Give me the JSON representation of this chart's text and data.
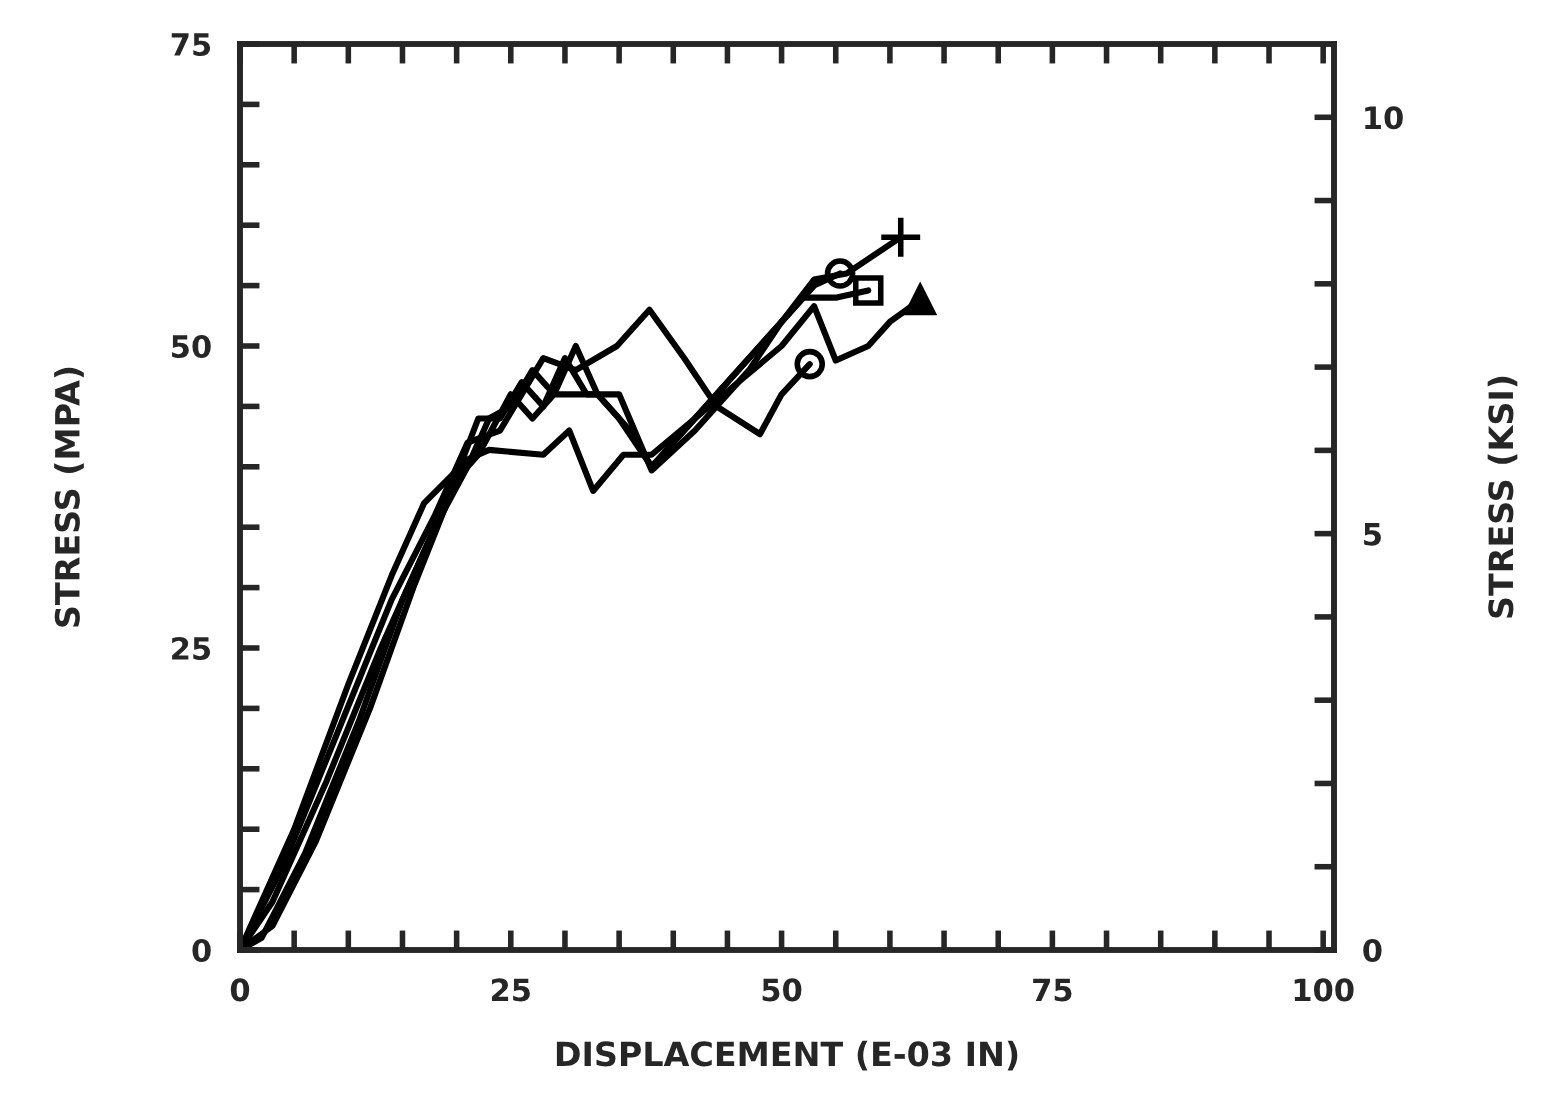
{
  "chart_data": {
    "type": "line",
    "xlabel": "DISPLACEMENT (E-03 IN)",
    "ylabel": "STRESS (MPA)",
    "y2label": "STRESS (KSI)",
    "xlim": [
      0,
      101
    ],
    "ylim": [
      0,
      75
    ],
    "y2lim": [
      0,
      10.88
    ],
    "xticks": [
      0,
      {
        "value": 5,
        "label": null
      },
      {
        "value": 10,
        "label": null
      },
      {
        "value": 15,
        "label": null
      },
      {
        "value": 20,
        "label": null
      },
      25,
      {
        "value": 30,
        "label": null
      },
      {
        "value": 35,
        "label": null
      },
      {
        "value": 40,
        "label": null
      },
      {
        "value": 45,
        "label": null
      },
      50,
      {
        "value": 55,
        "label": null
      },
      {
        "value": 60,
        "label": null
      },
      {
        "value": 65,
        "label": null
      },
      {
        "value": 70,
        "label": null
      },
      75,
      {
        "value": 80,
        "label": null
      },
      {
        "value": 85,
        "label": null
      },
      {
        "value": 90,
        "label": null
      },
      {
        "value": 95,
        "label": null
      },
      100
    ],
    "yticks": [
      0,
      {
        "value": 5,
        "label": null
      },
      {
        "value": 10,
        "label": null
      },
      {
        "value": 15,
        "label": null
      },
      {
        "value": 20,
        "label": null
      },
      25,
      {
        "value": 30,
        "label": null
      },
      {
        "value": 35,
        "label": null
      },
      {
        "value": 40,
        "label": null
      },
      {
        "value": 45,
        "label": null
      },
      50,
      {
        "value": 55,
        "label": null
      },
      {
        "value": 60,
        "label": null
      },
      {
        "value": 65,
        "label": null
      },
      {
        "value": 70,
        "label": null
      },
      75
    ],
    "y2ticks": [
      0,
      {
        "value": 1,
        "label": null
      },
      {
        "value": 2,
        "label": null
      },
      {
        "value": 3,
        "label": null
      },
      {
        "value": 4,
        "label": null
      },
      5,
      {
        "value": 6,
        "label": null
      },
      {
        "value": 7,
        "label": null
      },
      {
        "value": 8,
        "label": null
      },
      {
        "value": 9,
        "label": null
      },
      10
    ],
    "grid": false,
    "line_style": "solid",
    "series": [
      {
        "color": "#000000",
        "x": [
          0,
          3,
          8,
          13,
          18,
          21,
          23,
          25,
          27,
          29,
          31,
          33,
          36,
          38,
          42,
          46,
          50,
          53,
          56,
          61
        ],
        "values": [
          0,
          4,
          14,
          25,
          35,
          40,
          44,
          45,
          48,
          46,
          50,
          46,
          43,
          40,
          44,
          48,
          52,
          55.5,
          56,
          59
        ]
      },
      {
        "color": "#000000",
        "x": [
          0,
          2,
          6,
          11,
          15,
          19,
          22,
          24,
          26,
          28,
          30,
          32,
          35,
          38,
          42,
          47,
          50,
          53,
          55.4
        ],
        "values": [
          0,
          1,
          8,
          19,
          29,
          37,
          44,
          44,
          47,
          45,
          49,
          46,
          46,
          39.7,
          43,
          48,
          52,
          55,
          56
        ]
      },
      {
        "color": "#000000",
        "x": [
          0,
          3,
          7,
          12,
          16,
          20,
          22,
          25,
          27,
          29,
          33,
          35,
          38,
          43,
          48,
          52,
          55,
          58
        ],
        "values": [
          0,
          2,
          9,
          20,
          30,
          39,
          41,
          46,
          44,
          46,
          46,
          44,
          40,
          45,
          50,
          54,
          54,
          54.6
        ]
      },
      {
        "color": "#000000",
        "x": [
          0,
          1,
          5,
          10,
          14,
          17,
          21,
          23,
          28,
          30.4,
          32.6,
          35.4,
          38,
          42,
          46,
          50,
          53,
          55,
          58,
          60,
          62.8
        ],
        "values": [
          0,
          2,
          10,
          22,
          31,
          37,
          40.6,
          41.4,
          41,
          43,
          38,
          41,
          41,
          44,
          47,
          50,
          53.3,
          48.8,
          50,
          52,
          53.8
        ]
      },
      {
        "color": "#000000",
        "x": [
          0,
          4,
          9,
          14,
          18,
          21,
          24,
          26,
          28,
          31,
          34.8,
          37.8,
          41,
          44,
          48,
          50,
          52.6
        ],
        "values": [
          0,
          7,
          18,
          29,
          36,
          42,
          43,
          46,
          49,
          48,
          50,
          53,
          49,
          45,
          42.7,
          46,
          48.5
        ]
      },
      {
        "type": "scatter",
        "color": "#000000",
        "marker": "cross",
        "x": [
          61
        ],
        "values": [
          59
        ]
      },
      {
        "type": "scatter",
        "color": "#000000",
        "marker": "circle",
        "x": [
          55.4
        ],
        "values": [
          56
        ]
      },
      {
        "type": "scatter",
        "color": "#000000",
        "marker": "square",
        "x": [
          58
        ],
        "values": [
          54.6
        ]
      },
      {
        "type": "scatter",
        "color": "#000000",
        "marker": "triangle",
        "x": [
          62.8
        ],
        "values": [
          53.8
        ]
      },
      {
        "type": "scatter",
        "color": "#000000",
        "marker": "circle",
        "x": [
          52.6
        ],
        "values": [
          48.5
        ]
      }
    ]
  }
}
